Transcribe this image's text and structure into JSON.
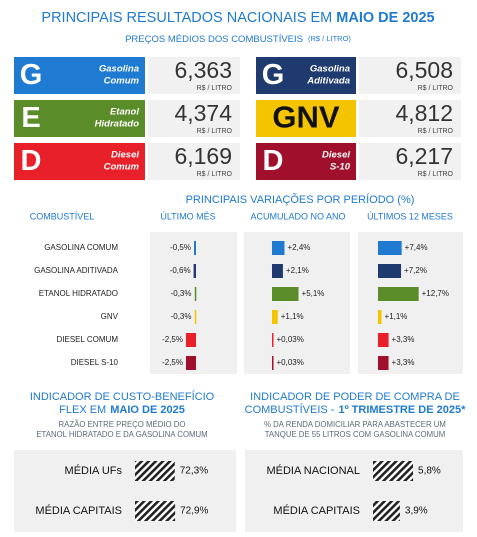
{
  "header": {
    "title": "PRINCIPAIS RESULTADOS NACIONAIS EM",
    "title_emphasis": "MAIO DE 2025",
    "subtitle": "PREÇOS MÉDIOS DOS COMBUSTÍVEIS",
    "unit": "(R$ / LITRO)"
  },
  "prices": {
    "unit": "R$ / LITRO",
    "cards": [
      {
        "letter": "G",
        "name": [
          "Gasolina",
          "Comum"
        ],
        "price": "6,363",
        "color": "#1f7ad1"
      },
      {
        "letter": "G",
        "name": [
          "Gasolina",
          "Aditivada"
        ],
        "price": "6,508",
        "color": "#1e3a6e"
      },
      {
        "letter": "E",
        "name": [
          "Etanol",
          "Hidratado"
        ],
        "price": "4,374",
        "color": "#5b8c2a"
      },
      {
        "letter": "GNV",
        "price": "4,812",
        "color": "#f5c400"
      },
      {
        "letter": "D",
        "name": [
          "Diesel",
          "Comum"
        ],
        "price": "6,169",
        "color": "#e8202a"
      },
      {
        "letter": "D",
        "name": [
          "Diesel",
          "S-10"
        ],
        "price": "6,217",
        "color": "#a0102c"
      }
    ]
  },
  "variations": {
    "title": "PRINCIPAIS VARIAÇÕES POR PERÍODO (%)",
    "columns": [
      "COMBUSTÍVEL",
      "ÚLTIMO MÊS",
      "ACUMULADO NO ANO",
      "ÚLTIMOS 12 MESES"
    ],
    "rows": [
      {
        "name": "GASOLINA COMUM",
        "color": "#1f7ad1",
        "values": [
          -0.5,
          2.4,
          7.4
        ],
        "value_labels": [
          "-0,5%",
          "+2,4%",
          "+7,4%"
        ]
      },
      {
        "name": "GASOLINA ADITIVADA",
        "color": "#1e3a6e",
        "values": [
          -0.6,
          2.1,
          7.2
        ],
        "value_labels": [
          "-0,6%",
          "+2,1%",
          "+7,2%"
        ]
      },
      {
        "name": "ETANOL HIDRATADO",
        "color": "#5b8c2a",
        "values": [
          -0.3,
          5.1,
          12.7
        ],
        "value_labels": [
          "-0,3%",
          "+5,1%",
          "+12,7%"
        ]
      },
      {
        "name": "GNV",
        "color": "#f5c400",
        "values": [
          -0.3,
          1.1,
          1.1
        ],
        "value_labels": [
          "-0,3%",
          "+1,1%",
          "+1,1%"
        ]
      },
      {
        "name": "DIESEL COMUM",
        "color": "#e8202a",
        "values": [
          -2.5,
          0.03,
          3.3
        ],
        "value_labels": [
          "-2,5%",
          "+0,03%",
          "+3,3%"
        ]
      },
      {
        "name": "DIESEL  S-10",
        "color": "#a0102c",
        "values": [
          -2.5,
          0.03,
          3.3
        ],
        "value_labels": [
          "-2,5%",
          "+0,03%",
          "+3,3%"
        ]
      }
    ]
  },
  "indicators": [
    {
      "title_lines": [
        "INDICADOR DE CUSTO-BENEFÍCIO",
        "FLEX EM"
      ],
      "title_emphasis": "MAIO DE 2025",
      "subtitle": [
        "RAZÃO ENTRE PREÇO MÉDIO DO",
        "ETANOL HIDRATADO E DA GASOLINA COMUM"
      ],
      "rows": [
        {
          "label": "MÉDIA UFs",
          "value": 72.3,
          "value_label": "72,3%"
        },
        {
          "label": "MÉDIA CAPITAIS",
          "value": 72.9,
          "value_label": "72,9%"
        }
      ]
    },
    {
      "title_lines": [
        "INDICADOR DE PODER DE COMPRA DE",
        "COMBUSTÍVEIS -"
      ],
      "title_emphasis": "1º TRIMESTRE DE 2025*",
      "subtitle": [
        "% DA RENDA DOMICILIAR PARA ABASTECER UM",
        "TANQUE DE 55 LITROS COM GASOLINA COMUM"
      ],
      "rows": [
        {
          "label": "MÉDIA NACIONAL",
          "value": 5.8,
          "value_label": "5,8%"
        },
        {
          "label": "MÉDIA CAPITAIS",
          "value": 3.9,
          "value_label": "3,9%"
        }
      ]
    }
  ]
}
